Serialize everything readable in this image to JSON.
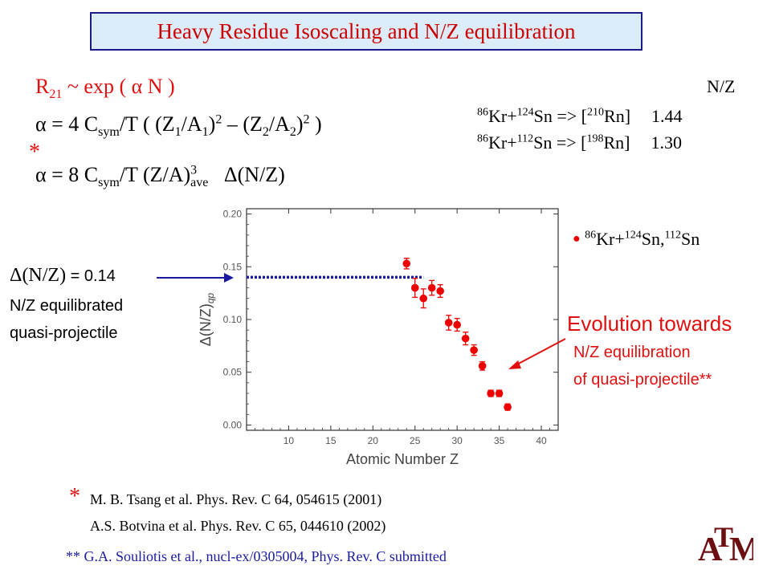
{
  "title": "Heavy Residue Isoscaling and N/Z equilibration",
  "equations": {
    "eq1": {
      "prefix": "R",
      "sub": "21",
      "rest_a": " ~  exp ( ",
      "greek": "α",
      "rest_b": " N )"
    },
    "eq2": {
      "greek": "α",
      "text_a": "  = 4 C",
      "sub_sym": "sym",
      "text_b": "/T  (  (Z",
      "s1": "1",
      "text_c": "/A",
      "s2": "1",
      "text_d": ")",
      "sup2": "2",
      "text_e": " – (Z",
      "s3": "2",
      "text_f": "/A",
      "s4": "2",
      "text_g": ")",
      "sup2b": "2",
      "text_h": " )"
    },
    "star": "*",
    "eq3": {
      "greek": "α",
      "text_a": "  = 8 C",
      "sub_sym": "sym",
      "text_b": "/T  (Z/A)",
      "sup3": "3",
      "sub_ave": "ave",
      "delta": "Δ",
      "text_c": "(N/Z)"
    }
  },
  "nz_table": {
    "header": "N/Z",
    "rows": [
      {
        "a1": "86",
        "el1": "Kr+",
        "a2": "124",
        "el2": "Sn => [",
        "a3": "210",
        "el3": "Rn]",
        "val": "1.44"
      },
      {
        "a1": "86",
        "el1": "Kr+",
        "a2": "112",
        "el2": "Sn => [",
        "a3": "198",
        "el3": "Rn]",
        "val": "1.30"
      }
    ]
  },
  "left_note": {
    "delta": "Δ",
    "line1_a": "(N/Z)",
    "line1_b": " = 0.14",
    "line2": "N/Z equilibrated",
    "line3": "quasi-projectile"
  },
  "legend": {
    "bullet": "●",
    "a1": "86",
    "el1": "Kr+",
    "a2": "124",
    "el2": "Sn,",
    "a3": "112",
    "el3": "Sn"
  },
  "evolution": {
    "line1": "Evolution  towards",
    "line2": "N/Z equilibration",
    "line3": "of quasi-projectile**"
  },
  "references": {
    "star": "*",
    "ref1": "M. B. Tsang et al.   Phys. Rev. C 64,  054615 (2001)",
    "ref2": "A.S. Botvina et al.  Phys. Rev. C 65,  044610 (2002)",
    "ref3": "** G.A. Souliotis et al.,  nucl-ex/0305004, Phys. Rev. C submitted"
  },
  "logo": {
    "text": "ATM",
    "a": "A",
    "t": "T",
    "m": "M"
  },
  "chart_data": {
    "type": "scatter",
    "xlabel": "Atomic Number Z",
    "ylabel": "Δ(N/Z)",
    "ylabel_sub": "qp",
    "xlim": [
      5,
      42
    ],
    "ylim": [
      -0.005,
      0.205
    ],
    "xticks": [
      "10",
      "15",
      "20",
      "25",
      "30",
      "35",
      "40"
    ],
    "yticks": [
      "0.00",
      "0.05",
      "0.10",
      "0.15",
      "0.20"
    ],
    "reference_line": {
      "y": 0.14,
      "x_from": 5,
      "x_to": 26
    },
    "series": [
      {
        "color": "#ee0000",
        "x": [
          24,
          25,
          26,
          27,
          28,
          29,
          30,
          31,
          32,
          33,
          34,
          35,
          36
        ],
        "y": [
          0.153,
          0.13,
          0.12,
          0.13,
          0.127,
          0.097,
          0.095,
          0.082,
          0.071,
          0.056,
          0.03,
          0.03,
          0.017
        ],
        "err": [
          0.005,
          0.009,
          0.009,
          0.007,
          0.006,
          0.007,
          0.006,
          0.006,
          0.005,
          0.004,
          0.003,
          0.003,
          0.003
        ]
      }
    ]
  }
}
